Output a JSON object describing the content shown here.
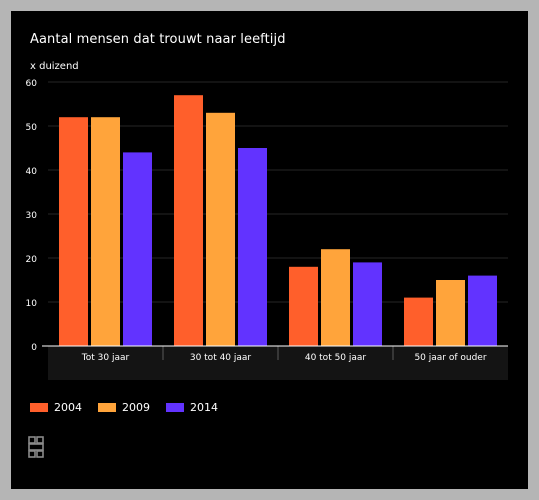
{
  "chart_data": {
    "type": "bar",
    "title": "Aantal mensen dat trouwt naar leeftijd",
    "ylabel": "x duizend",
    "xlabel": "",
    "ylim": [
      0,
      60
    ],
    "yticks": [
      0,
      10,
      20,
      30,
      40,
      50,
      60
    ],
    "grid": true,
    "legend_position": "bottom-left",
    "categories": [
      "Tot 30 jaar",
      "30 tot 40 jaar",
      "40 tot 50 jaar",
      "50 jaar of ouder"
    ],
    "series": [
      {
        "name": "2004",
        "color": "#ff5f2b",
        "values": [
          52,
          57,
          18,
          11
        ]
      },
      {
        "name": "2009",
        "color": "#ffa43b",
        "values": [
          52,
          53,
          22,
          15
        ]
      },
      {
        "name": "2014",
        "color": "#6233ff",
        "values": [
          44,
          45,
          19,
          16
        ]
      }
    ]
  },
  "logo": {
    "icon": "cbs-logo-icon"
  }
}
